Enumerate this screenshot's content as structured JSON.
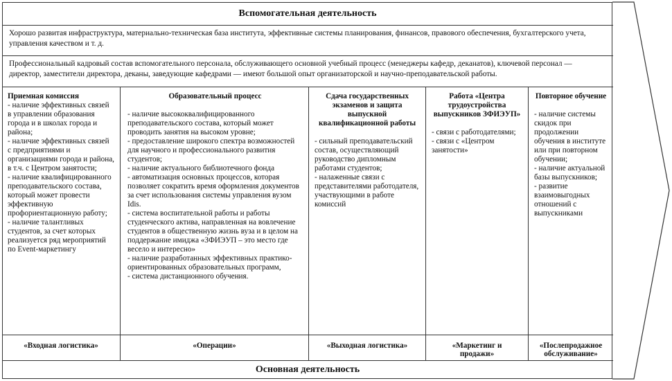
{
  "support": {
    "title": "Вспомогательная деятельность",
    "infrastructure": "Хорошо развитая инфраструктура, материально-техническая база института, эффективные системы планирования, финансов, правового обеспечения, бухгалтерского учета, управления качеством и т. д.",
    "hr": "Профессиональный кадровый состав вспомогательного персонала, обслуживающего основной учебный процесс (менеджеры кафедр, деканатов), ключевой персонал — директор, заместители директора, деканы, заведующие кафедрами — имеют большой опыт организаторской и научно-преподавательской работы."
  },
  "columns": [
    {
      "head": "Приемная комиссия",
      "items": [
        "- наличие эффективных связей в управлении образования города и в школах города и района;",
        "- наличие эффективных связей с предприятиями и организациями города и района, в т.ч. с Центром занятости;",
        "- наличие квалифицированного преподавательского состава, который может провести эффективную профориентационную работу;",
        "- наличие талантливых студентов, за счет которых реализуется ряд мероприятий по Event-маркетингу"
      ],
      "label": "«Входная логистика»"
    },
    {
      "head": "Образовательный процесс",
      "items": [
        "- наличие высококвалифицированного преподавательского состава, который может проводить занятия на высоком уровне;",
        "- предоставление широкого спектра возможностей для научного и профессионального развития студентов;",
        "- наличие актуального библиотечного фонда",
        "- автоматизация основных процессов, которая позволяет сократить время оформления документов за счет использования системы управления вузом Idis.",
        "- система воспитательной работы и работы студенческого актива, направленная на вовлечение студентов в общественную жизнь вуза и в целом на поддержание имиджа «ЗФИЭУП – это место где весело и интересно»",
        "- наличие разработанных эффективных практико-ориентированных образовательных программ,",
        "- система дистанционного обучения."
      ],
      "label": "«Операции»"
    },
    {
      "head": "Сдача государственных экзаменов и защита выпускной квалификационной работы",
      "items": [
        "- сильный преподавательский состав, осуществляющий руководство дипломным работами студентов;",
        "- налаженные связи с представителями работодателя, участвующими в работе комиссий"
      ],
      "label": "«Выходная логистика»"
    },
    {
      "head": "Работа «Центра трудоустройства выпускников ЗФИЭУП»",
      "items": [
        "- связи с работодателями;",
        "- связи с «Центром занятости»"
      ],
      "label": "«Маркетинг и продажи»"
    },
    {
      "head": "Повторное обучение",
      "items": [
        "- наличие системы скидок при продолжении обучения в институте или при повторном обучении;",
        "- наличие актуальной базы выпускников;",
        "- развитие взаимовыгодных отношений с выпускниками"
      ],
      "label": "«Послепродажное обслуживание»"
    }
  ],
  "primary": {
    "title": "Основная деятельность"
  }
}
